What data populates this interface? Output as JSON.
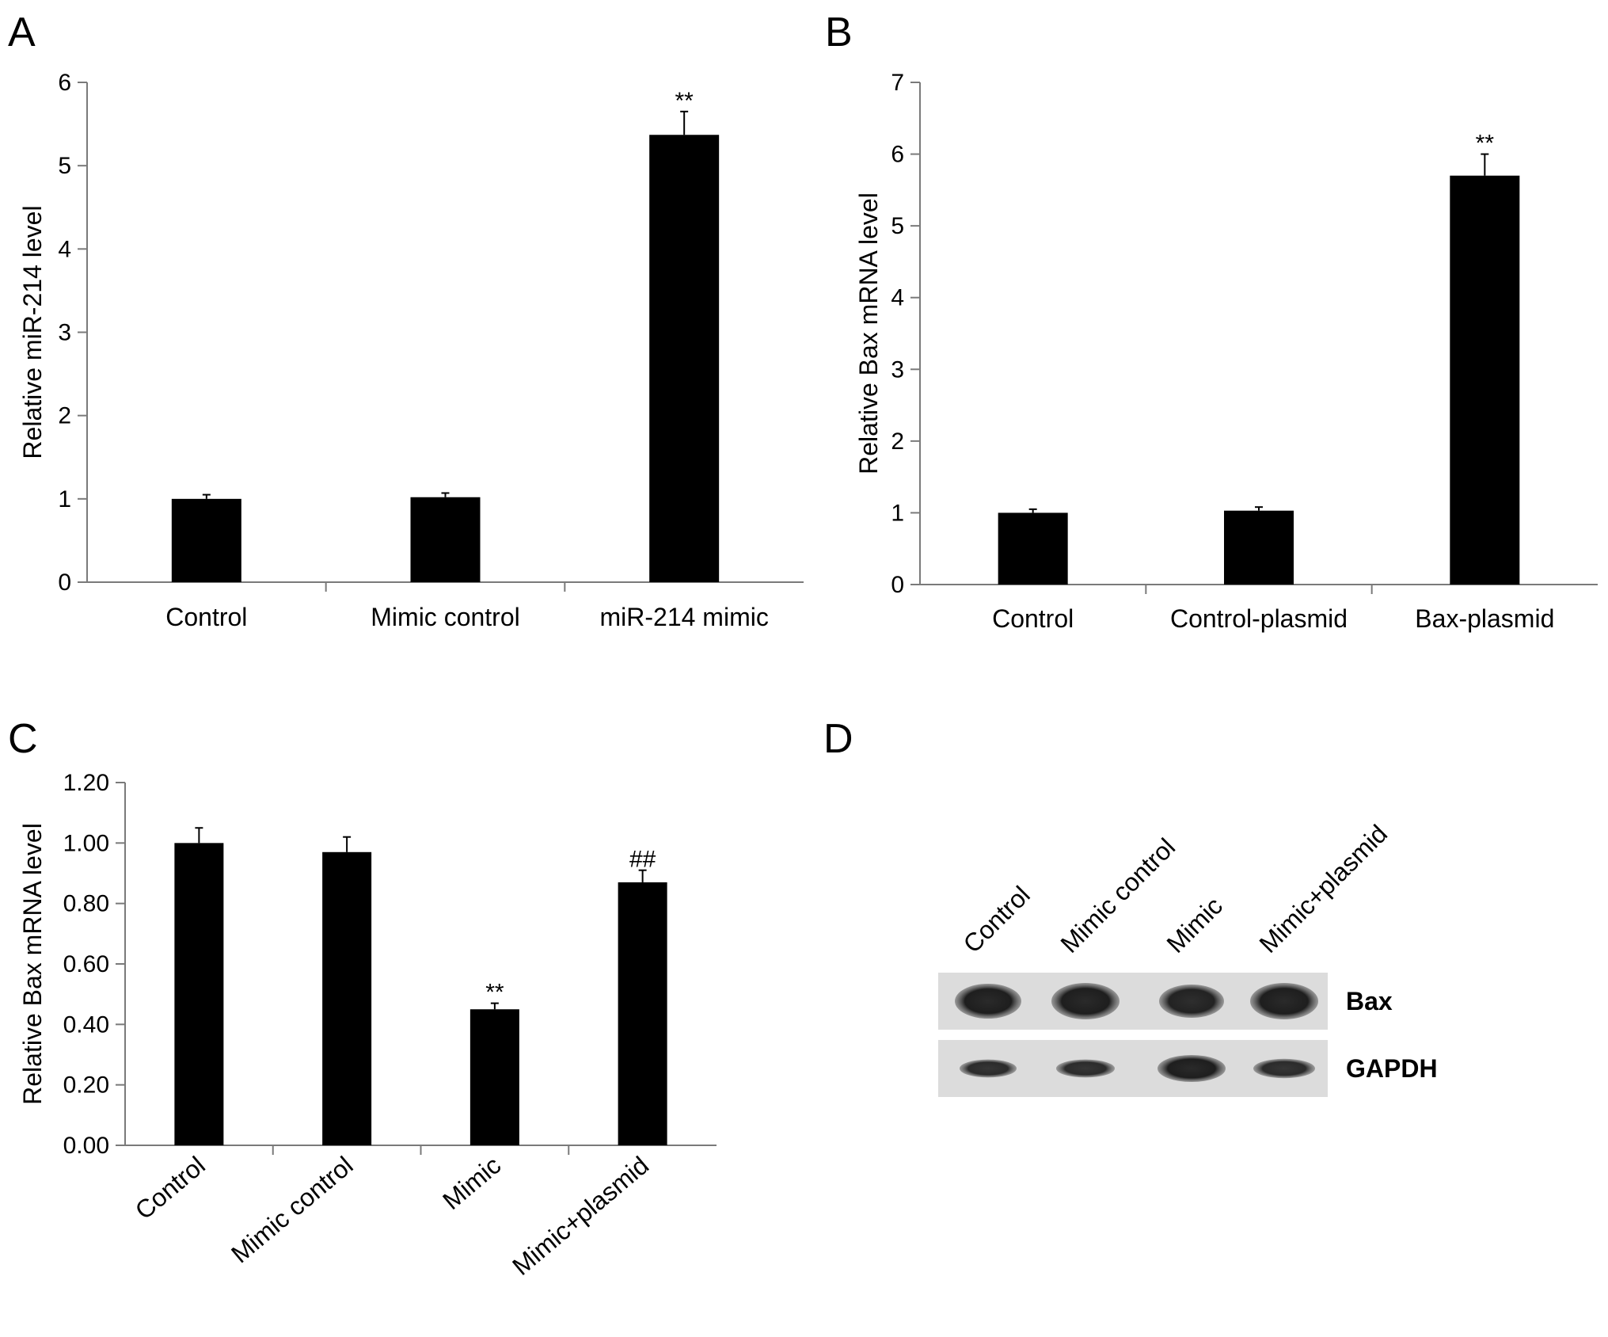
{
  "chart_data": [
    {
      "panel": "A",
      "type": "bar",
      "categories": [
        "Control",
        "Mimic control",
        "miR-214 mimic"
      ],
      "values": [
        1.0,
        1.02,
        5.37
      ],
      "errors": [
        0.05,
        0.05,
        0.28
      ],
      "annotations": [
        "",
        "",
        "**"
      ],
      "ylabel": "Relative miR-214 level",
      "ylim": [
        0,
        6
      ],
      "yticks": [
        "0",
        "1",
        "2",
        "3",
        "4",
        "5",
        "6"
      ],
      "ytick_values": [
        0,
        1,
        2,
        3,
        4,
        5,
        6
      ],
      "grid": false
    },
    {
      "panel": "B",
      "type": "bar",
      "categories": [
        "Control",
        "Control-plasmid",
        "Bax-plasmid"
      ],
      "values": [
        1.0,
        1.03,
        5.7
      ],
      "errors": [
        0.05,
        0.05,
        0.3
      ],
      "annotations": [
        "",
        "",
        "**"
      ],
      "ylabel": "Relative Bax mRNA level",
      "ylim": [
        0,
        7
      ],
      "yticks": [
        "0",
        "1",
        "2",
        "3",
        "4",
        "5",
        "6",
        "7"
      ],
      "ytick_values": [
        0,
        1,
        2,
        3,
        4,
        5,
        6,
        7
      ],
      "grid": false
    },
    {
      "panel": "C",
      "type": "bar",
      "categories": [
        "Control",
        "Mimic control",
        "Mimic",
        "Mimic+plasmid"
      ],
      "values": [
        1.0,
        0.97,
        0.45,
        0.87
      ],
      "errors": [
        0.05,
        0.05,
        0.02,
        0.04
      ],
      "annotations": [
        "",
        "",
        "**",
        "##"
      ],
      "ylabel": "Relative Bax mRNA level",
      "ylim": [
        0,
        1.2
      ],
      "yticks": [
        "0.00",
        "0.20",
        "0.40",
        "0.60",
        "0.80",
        "1.00",
        "1.20"
      ],
      "ytick_values": [
        0,
        0.2,
        0.4,
        0.6,
        0.8,
        1.0,
        1.2
      ],
      "grid": false
    }
  ],
  "blot": {
    "panel": "D",
    "lanes": [
      "Control",
      "Mimic control",
      "Mimic",
      "Mimic+plasmid"
    ],
    "rows": [
      {
        "label": "Bax",
        "intensity": [
          1.0,
          1.0,
          0.95,
          1.0
        ]
      },
      {
        "label": "GAPDH",
        "intensity": [
          0.85,
          0.85,
          1.0,
          0.85
        ]
      }
    ]
  }
}
